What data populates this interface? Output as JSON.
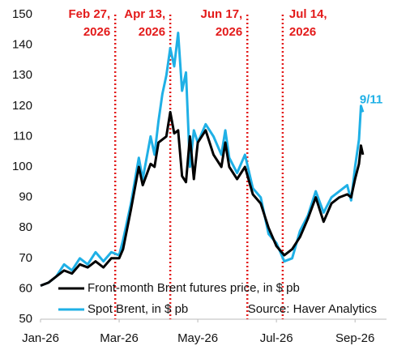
{
  "chart_data": {
    "type": "line",
    "x": [
      0,
      0.2,
      0.4,
      0.6,
      0.8,
      1.0,
      1.2,
      1.4,
      1.6,
      1.8,
      2.0,
      2.1,
      2.3,
      2.5,
      2.6,
      2.8,
      2.9,
      3.0,
      3.1,
      3.2,
      3.3,
      3.4,
      3.5,
      3.6,
      3.7,
      3.8,
      3.9,
      4.0,
      4.2,
      4.4,
      4.6,
      4.7,
      4.8,
      5.0,
      5.2,
      5.4,
      5.6,
      5.8,
      6.0,
      6.2,
      6.4,
      6.6,
      6.8,
      7.0,
      7.2,
      7.4,
      7.6,
      7.8,
      7.9,
      8.0,
      8.1,
      8.15,
      8.2
    ],
    "series": [
      {
        "name": "Spot Brent, in $ pb",
        "color": "#1fb0e6",
        "values": [
          61,
          62,
          64,
          68,
          66,
          70,
          68,
          72,
          69,
          72,
          71,
          76,
          88,
          103,
          96,
          110,
          104,
          115,
          124,
          130,
          139,
          133,
          144,
          125,
          131,
          100,
          112,
          108,
          114,
          110,
          104,
          112,
          103,
          98,
          104,
          93,
          90,
          78,
          75,
          69,
          70,
          79,
          84,
          92,
          85,
          90,
          92,
          94,
          89,
          100,
          109,
          120,
          118
        ]
      },
      {
        "name": "Front-month Brent futures price, in $ pb",
        "color": "#000000",
        "values": [
          61,
          62,
          64,
          66,
          65,
          68,
          67,
          69,
          67,
          70,
          70,
          73,
          86,
          100,
          94,
          101,
          100,
          108,
          109,
          110,
          118,
          111,
          112,
          97,
          95,
          110,
          96,
          108,
          112,
          104,
          100,
          108,
          100,
          96,
          100,
          91,
          88,
          80,
          74,
          71,
          73,
          77,
          83,
          90,
          82,
          88,
          90,
          91,
          90,
          96,
          101,
          107,
          104
        ]
      }
    ],
    "xlim": [
      0,
      8.8
    ],
    "xticks": [
      {
        "value": 0,
        "label": "Jan-26"
      },
      {
        "value": 2,
        "label": "Mar-26"
      },
      {
        "value": 4,
        "label": "May-26"
      },
      {
        "value": 6,
        "label": "Jul-26"
      },
      {
        "value": 8,
        "label": "Sep-26"
      }
    ],
    "ylim": [
      50,
      150
    ],
    "yticks": [
      50,
      60,
      70,
      80,
      90,
      100,
      110,
      120,
      130,
      140,
      150
    ],
    "grid": false,
    "event_lines": [
      {
        "x": 1.9,
        "label": [
          "Feb 27,",
          "2026"
        ],
        "side": "left"
      },
      {
        "x": 3.3,
        "label": [
          "Apr 13,",
          "2026"
        ],
        "side": "left"
      },
      {
        "x": 5.26,
        "label": [
          "Jun 17,",
          "2026"
        ],
        "side": "left"
      },
      {
        "x": 6.16,
        "label": [
          "Jul 14,",
          "2026"
        ],
        "side": "right"
      }
    ],
    "event_color": "#e31b1b",
    "end_label": "9/11",
    "source": "Source: Haver Analytics"
  }
}
